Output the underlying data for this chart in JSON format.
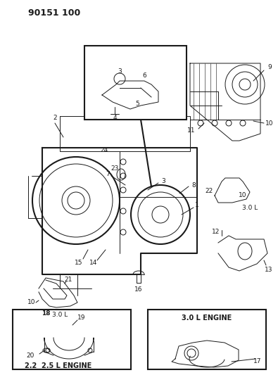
{
  "title": "90151 100",
  "background_color": "#ffffff",
  "line_color": "#1a1a1a",
  "fig_width": 3.95,
  "fig_height": 5.33,
  "dpi": 100,
  "labels": {
    "top_left": "90151 100",
    "box1_title": "2.2  2.5 L ENGINE",
    "box2_title": "3.0 L ENGINE",
    "label_3oL_left": "3.0 L",
    "label_3oL_right": "3.0 L"
  }
}
